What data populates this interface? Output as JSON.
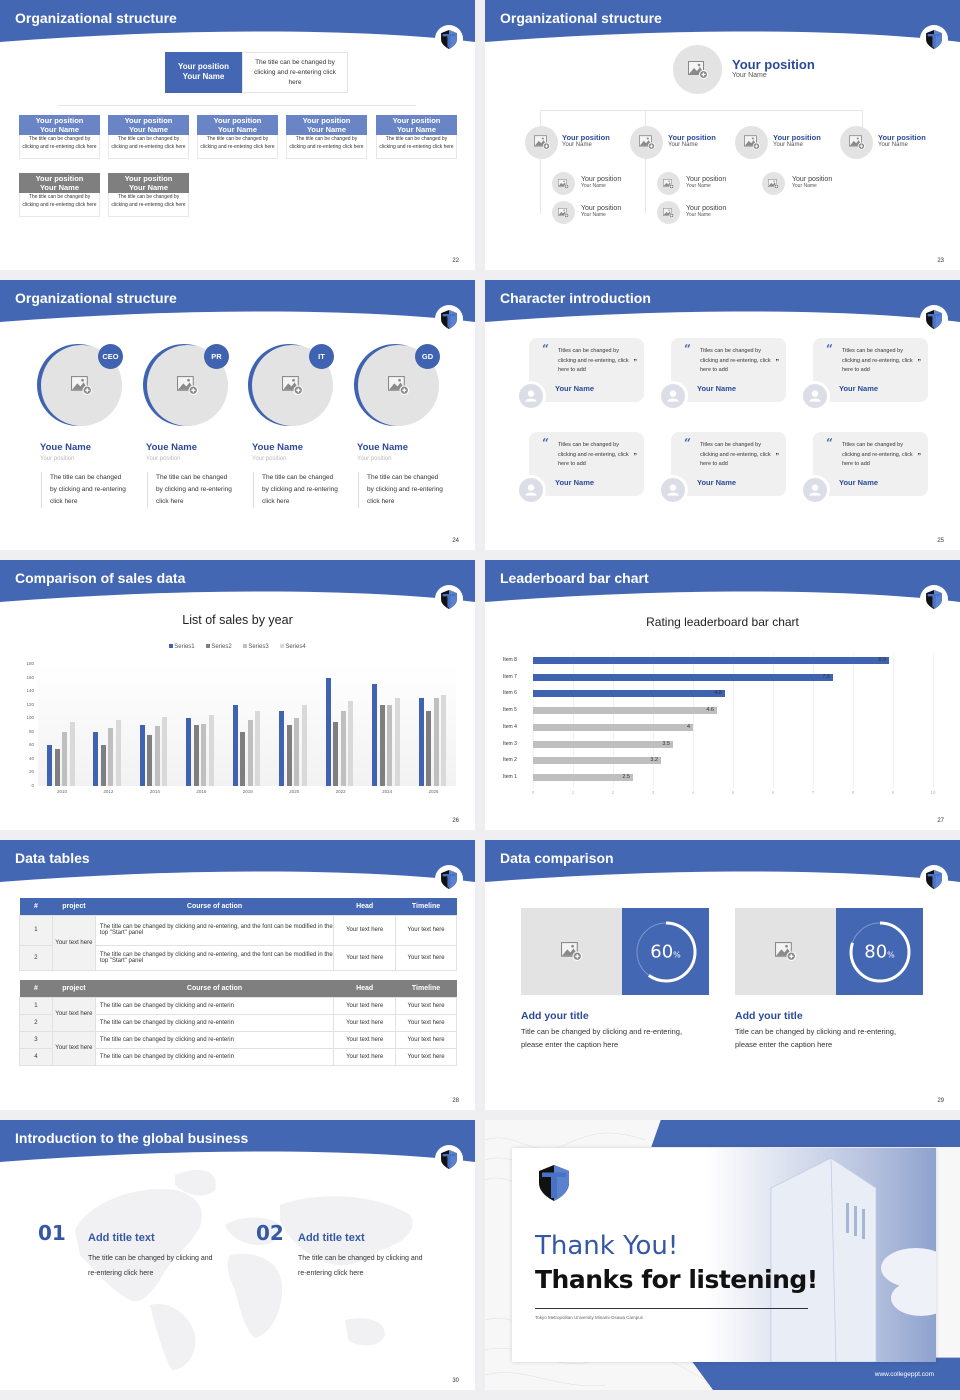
{
  "theme": {
    "primary": "#4467b3",
    "dark_text": "#2b4a9a",
    "gray_card": "#7f7f7f",
    "light_gray": "#e4e3e4"
  },
  "slides": {
    "s22": {
      "title": "Organizational structure",
      "page": "22",
      "top": {
        "position": "Your position",
        "name": "Your Name",
        "desc": "The title can be changed by clicking and re-entering click here"
      },
      "row1": [
        {
          "position": "Your position",
          "name": "Your Name",
          "desc": "The title can be changed by clicking and re-entering click here"
        },
        {
          "position": "Your position",
          "name": "Your Name",
          "desc": "The title can be changed by clicking and re-entering click here"
        },
        {
          "position": "Your position",
          "name": "Your Name",
          "desc": "The title can be changed by clicking and re-entering click here"
        },
        {
          "position": "Your position",
          "name": "Your Name",
          "desc": "The title can be changed by clicking and re-entering click here"
        },
        {
          "position": "Your position",
          "name": "Your Name",
          "desc": "The title can be changed by clicking and re-entering click here"
        }
      ],
      "row2": [
        {
          "position": "Your position",
          "name": "Your Name",
          "desc": "The title can be changed by clicking and re-entering click here"
        },
        {
          "position": "Your position",
          "name": "Your Name",
          "desc": "The title can be changed by clicking and re-entering click here"
        }
      ]
    },
    "s23": {
      "title": "Organizational structure",
      "page": "23",
      "top": {
        "position": "Your position",
        "name": "Your Name"
      },
      "level2": [
        {
          "position": "Your position",
          "name": "Your Name"
        },
        {
          "position": "Your position",
          "name": "Your Name"
        },
        {
          "position": "Your position",
          "name": "Your Name"
        },
        {
          "position": "Your position",
          "name": "Your Name"
        }
      ],
      "level3": [
        {
          "position": "Your position",
          "name": "Your Name"
        },
        {
          "position": "Your position",
          "name": "Your Name"
        },
        {
          "position": "Your position",
          "name": "Your Name"
        },
        {
          "position": "Your position",
          "name": "Your Name"
        },
        {
          "position": "Your position",
          "name": "Your Name"
        }
      ]
    },
    "s24": {
      "title": "Organizational structure",
      "page": "24",
      "people": [
        {
          "tag": "CEO",
          "name": "Youe Name",
          "position": "Your position",
          "desc": "The title can be changed by clicking and re-entering click here"
        },
        {
          "tag": "PR",
          "name": "Youe Name",
          "position": "Your position",
          "desc": "The title can be changed by clicking and re-entering click here"
        },
        {
          "tag": "IT",
          "name": "Youe Name",
          "position": "Your position",
          "desc": "The title can be changed by clicking and re-entering click here"
        },
        {
          "tag": "GD",
          "name": "Youe Name",
          "position": "Your position",
          "desc": "The title can be changed by clicking and re-entering click here"
        }
      ]
    },
    "s25": {
      "title": "Character introduction",
      "page": "25",
      "quotes": [
        {
          "text": "Titles can be changed by clicking and re-entering, click here to add",
          "name": "Your Name"
        },
        {
          "text": "Titles can be changed by clicking and re-entering, click here to add",
          "name": "Your Name"
        },
        {
          "text": "Titles can be changed by clicking and re-entering, click here to add",
          "name": "Your Name"
        },
        {
          "text": "Titles can be changed by clicking and re-entering, click here to add",
          "name": "Your Name"
        },
        {
          "text": "Titles can be changed by clicking and re-entering, click here to add",
          "name": "Your Name"
        },
        {
          "text": "Titles can be changed by clicking and re-entering, click here to add",
          "name": "Your Name"
        }
      ],
      "open_quote": "“",
      "close_quote": "”"
    },
    "s26": {
      "title": "Comparison of sales data",
      "page": "26"
    },
    "s27": {
      "title": "Leaderboard bar chart",
      "page": "27"
    },
    "s28": {
      "title": "Data tables",
      "page": "28",
      "headers": [
        "#",
        "project",
        "Course of action",
        "Head",
        "Timeline"
      ],
      "table1": {
        "project": "Your text here",
        "rows": [
          {
            "num": "1",
            "action": "The title can be changed by clicking and re-entering, and the font can be modified in the top \"Start\" panel",
            "head": "Your text here",
            "timeline": "Your text here"
          },
          {
            "num": "2",
            "action": "The title can be changed by clicking and re-entering, and the font can be modified in the top \"Start\" panel",
            "head": "Your text here",
            "timeline": "Your text here"
          }
        ]
      },
      "table2": {
        "projects": [
          "Your text here",
          "Your text here"
        ],
        "rows": [
          {
            "num": "1",
            "action": "The title can be changed by clicking and re-enterin",
            "head": "Your text here",
            "timeline": "Your text here"
          },
          {
            "num": "2",
            "action": "The title can be changed by clicking and re-enterin",
            "head": "Your text here",
            "timeline": "Your text here"
          },
          {
            "num": "3",
            "action": "The title can be changed by clicking and re-enterin",
            "head": "Your text here",
            "timeline": "Your text here"
          },
          {
            "num": "4",
            "action": "The title can be changed by clicking and re-enterin",
            "head": "Your text here",
            "timeline": "Your text here"
          }
        ]
      }
    },
    "s29": {
      "title": "Data comparison",
      "page": "29",
      "items": [
        {
          "value": "60",
          "unit": "%",
          "percent": 60,
          "title": "Add your title",
          "desc": "Title can be changed by clicking and re-entering, please enter the caption here"
        },
        {
          "value": "80",
          "unit": "%",
          "percent": 80,
          "title": "Add your title",
          "desc": "Title can be changed by clicking and re-entering, please enter the caption here"
        }
      ]
    },
    "s30": {
      "title": "Introduction to the global business",
      "page": "30",
      "items": [
        {
          "num": "01",
          "title": "Add title text",
          "desc": "The title can be changed by clicking and re-entering click here"
        },
        {
          "num": "02",
          "title": "Add title text",
          "desc": "The title can be changed by clicking and re-entering click here"
        }
      ]
    },
    "s31": {
      "heading": "Thank You!",
      "subheading": "Thanks for listening!",
      "caption": "Tokyo Metropolitan University Minami-Osawa Campus",
      "url": "www.collegeppt.com"
    }
  },
  "chart_data": [
    {
      "type": "bar",
      "title": "List of sales by year",
      "categories": [
        "2010",
        "2012",
        "2014",
        "2016",
        "2018",
        "2020",
        "2022",
        "2024",
        "2026"
      ],
      "series": [
        {
          "name": "Series1",
          "color": "#3f63b0",
          "values": [
            60,
            80,
            90,
            100,
            120,
            110,
            160,
            150,
            130
          ]
        },
        {
          "name": "Series2",
          "color": "#7f7f7f",
          "values": [
            55,
            60,
            75,
            90,
            80,
            90,
            95,
            120,
            110
          ]
        },
        {
          "name": "Series3",
          "color": "#bfbfbf",
          "values": [
            80,
            85,
            88,
            92,
            98,
            100,
            110,
            120,
            130
          ]
        },
        {
          "name": "Series4",
          "color": "#d9d9d9",
          "values": [
            95,
            98,
            102,
            105,
            110,
            120,
            126,
            130,
            135
          ]
        }
      ],
      "yticks": [
        "0",
        "20",
        "40",
        "60",
        "80",
        "100",
        "120",
        "140",
        "160",
        "180"
      ],
      "ylim": [
        0,
        180
      ],
      "xlabel": "",
      "ylabel": "",
      "grid": false,
      "legend_position": "top"
    },
    {
      "type": "bar",
      "orientation": "horizontal",
      "title": "Rating leaderboard bar chart",
      "categories": [
        "Item 8",
        "Item 7",
        "Item 6",
        "Item 5",
        "Item 4",
        "Item 3",
        "Item 2",
        "Item 1"
      ],
      "values": [
        8.9,
        7.5,
        4.8,
        4.6,
        4,
        3.5,
        3.2,
        2.5
      ],
      "labels": [
        "8.9",
        "7.5",
        "4.8",
        "4.6",
        "4",
        "3.5",
        "3.2",
        "2.5"
      ],
      "colors": [
        "#3f63b0",
        "#3f63b0",
        "#3f63b0",
        "#bfbfbf",
        "#bfbfbf",
        "#bfbfbf",
        "#bfbfbf",
        "#bfbfbf"
      ],
      "xticks": [
        "0",
        "1",
        "2",
        "3",
        "4",
        "5",
        "6",
        "7",
        "8",
        "9",
        "10"
      ],
      "xlim": [
        0,
        10
      ],
      "grid": true
    }
  ]
}
